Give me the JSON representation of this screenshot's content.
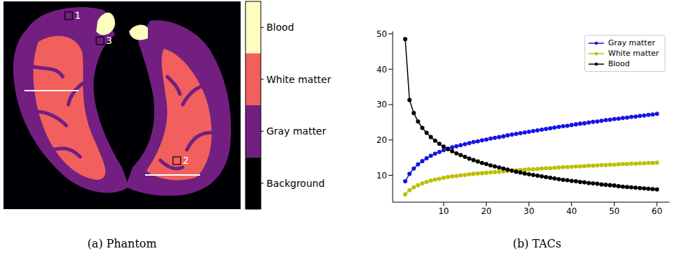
{
  "chart_data": [
    {
      "type": "image",
      "caption": "(a) Phantom",
      "colorbar": {
        "labels": [
          "Blood",
          "White matter",
          "Gray matter",
          "Background"
        ],
        "colors": [
          "#fcfdbf",
          "#f1605d",
          "#721f81",
          "#000004"
        ]
      },
      "annotations": [
        "1",
        "2",
        "3"
      ]
    },
    {
      "type": "line",
      "caption": "(b) TACs",
      "legend": "upper right",
      "marker": "o",
      "x": [
        1,
        2,
        3,
        4,
        5,
        6,
        7,
        8,
        9,
        10,
        11,
        12,
        13,
        14,
        15,
        16,
        17,
        18,
        19,
        20,
        21,
        22,
        23,
        24,
        25,
        26,
        27,
        28,
        29,
        30,
        31,
        32,
        33,
        34,
        35,
        36,
        37,
        38,
        39,
        40,
        41,
        42,
        43,
        44,
        45,
        46,
        47,
        48,
        49,
        50,
        51,
        52,
        53,
        54,
        55,
        56,
        57,
        58,
        59,
        60
      ],
      "xlim": [
        -1.95,
        62.95
      ],
      "xticks": [
        10,
        20,
        30,
        40,
        50,
        60
      ],
      "ylim": [
        2.4,
        50.7
      ],
      "yticks": [
        10,
        20,
        30,
        40,
        50
      ],
      "series": [
        {
          "name": "Gray matter",
          "color": "#1515e0",
          "values": [
            8.3,
            10.4,
            11.9,
            13.1,
            14.0,
            14.8,
            15.5,
            16.1,
            16.6,
            17.1,
            17.5,
            17.9,
            18.2,
            18.5,
            18.8,
            19.1,
            19.4,
            19.6,
            19.9,
            20.1,
            20.4,
            20.6,
            20.8,
            21.0,
            21.3,
            21.5,
            21.7,
            21.9,
            22.1,
            22.3,
            22.5,
            22.7,
            22.9,
            23.1,
            23.3,
            23.5,
            23.7,
            23.9,
            24.0,
            24.2,
            24.4,
            24.6,
            24.7,
            24.9,
            25.1,
            25.2,
            25.4,
            25.6,
            25.7,
            25.9,
            26.0,
            26.2,
            26.3,
            26.5,
            26.6,
            26.8,
            26.9,
            27.1,
            27.2,
            27.4
          ]
        },
        {
          "name": "White matter",
          "color": "#bfbf00",
          "values": [
            4.6,
            5.8,
            6.6,
            7.2,
            7.7,
            8.1,
            8.5,
            8.8,
            9.0,
            9.3,
            9.5,
            9.7,
            9.8,
            10.0,
            10.1,
            10.3,
            10.4,
            10.5,
            10.6,
            10.7,
            10.8,
            10.9,
            11.0,
            11.1,
            11.2,
            11.3,
            11.4,
            11.5,
            11.6,
            11.7,
            11.7,
            11.8,
            11.9,
            12.0,
            12.0,
            12.1,
            12.2,
            12.3,
            12.3,
            12.4,
            12.5,
            12.5,
            12.6,
            12.7,
            12.7,
            12.8,
            12.9,
            12.9,
            13.0,
            13.0,
            13.1,
            13.2,
            13.2,
            13.3,
            13.3,
            13.4,
            13.4,
            13.5,
            13.5,
            13.6
          ]
        },
        {
          "name": "Blood",
          "color": "#000000",
          "values": [
            48.5,
            31.3,
            27.6,
            25.2,
            23.4,
            22.0,
            20.8,
            19.8,
            18.9,
            18.1,
            17.4,
            16.8,
            16.2,
            15.7,
            15.2,
            14.7,
            14.3,
            13.9,
            13.5,
            13.2,
            12.8,
            12.5,
            12.2,
            11.9,
            11.6,
            11.3,
            11.0,
            10.8,
            10.5,
            10.3,
            10.1,
            9.9,
            9.7,
            9.5,
            9.3,
            9.1,
            8.9,
            8.7,
            8.6,
            8.4,
            8.3,
            8.1,
            8.0,
            7.8,
            7.7,
            7.6,
            7.4,
            7.3,
            7.2,
            7.1,
            6.9,
            6.8,
            6.7,
            6.6,
            6.5,
            6.4,
            6.3,
            6.2,
            6.1,
            6.0
          ]
        }
      ]
    }
  ]
}
